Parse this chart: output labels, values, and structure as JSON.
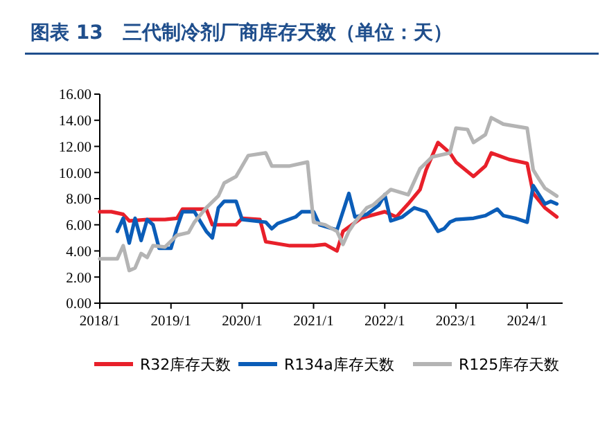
{
  "chart_data": {
    "type": "line",
    "title": "图表 13　三代制冷剂厂商库存天数（单位：天）",
    "xlim": [
      "2018-01",
      "2024-07"
    ],
    "xticks": [
      {
        "value": "2018-01",
        "label": "2018/1"
      },
      {
        "value": "2019-01",
        "label": "2019/1"
      },
      {
        "value": "2020-01",
        "label": "2020/1"
      },
      {
        "value": "2021-01",
        "label": "2021/1"
      },
      {
        "value": "2022-01",
        "label": "2022/1"
      },
      {
        "value": "2023-01",
        "label": "2023/1"
      },
      {
        "value": "2024-01",
        "label": "2024/1"
      }
    ],
    "ylim": [
      0,
      16
    ],
    "yticks": [
      {
        "value": 0,
        "label": "0.00"
      },
      {
        "value": 2,
        "label": "2.00"
      },
      {
        "value": 4,
        "label": "4.00"
      },
      {
        "value": 6,
        "label": "6.00"
      },
      {
        "value": 8,
        "label": "8.00"
      },
      {
        "value": 10,
        "label": "10.00"
      },
      {
        "value": 12,
        "label": "12.00"
      },
      {
        "value": 14,
        "label": "14.00"
      },
      {
        "value": 16,
        "label": "16.00"
      }
    ],
    "grid": false,
    "legend": "bottom",
    "marker": "none",
    "line_style": "solid",
    "series": [
      {
        "name": "R32库存天数",
        "color": "#e8202a",
        "x": [
          "2018-01",
          "2018-03",
          "2018-05",
          "2018-06",
          "2018-09",
          "2018-12",
          "2019-02",
          "2019-03",
          "2019-07",
          "2019-08",
          "2019-12",
          "2020-01",
          "2020-04",
          "2020-05",
          "2020-09",
          "2021-01",
          "2021-03",
          "2021-05",
          "2021-06",
          "2021-09",
          "2022-01",
          "2022-03",
          "2022-05",
          "2022-07",
          "2022-08",
          "2022-10",
          "2022-12",
          "2023-01",
          "2023-04",
          "2023-06",
          "2023-07",
          "2023-10",
          "2024-01",
          "2024-02",
          "2024-04",
          "2024-06"
        ],
        "values": [
          7.0,
          7.0,
          6.8,
          6.3,
          6.4,
          6.4,
          6.5,
          7.2,
          7.2,
          6.0,
          6.0,
          6.5,
          6.4,
          4.7,
          4.4,
          4.4,
          4.5,
          4.0,
          5.5,
          6.5,
          7.0,
          6.6,
          7.6,
          8.7,
          10.2,
          12.3,
          11.5,
          10.8,
          9.7,
          10.5,
          11.5,
          11.0,
          10.7,
          8.4,
          7.3,
          6.6
        ]
      },
      {
        "name": "R134a库存天数",
        "color": "#0b5db8",
        "x": [
          "2018-04",
          "2018-05",
          "2018-06",
          "2018-07",
          "2018-08",
          "2018-09",
          "2018-10",
          "2018-11",
          "2019-01",
          "2019-02",
          "2019-03",
          "2019-05",
          "2019-07",
          "2019-08",
          "2019-09",
          "2019-10",
          "2019-12",
          "2020-01",
          "2020-05",
          "2020-06",
          "2020-07",
          "2020-10",
          "2020-11",
          "2021-01",
          "2021-02",
          "2021-05",
          "2021-07",
          "2021-08",
          "2021-10",
          "2021-12",
          "2022-01",
          "2022-02",
          "2022-04",
          "2022-06",
          "2022-08",
          "2022-10",
          "2022-11",
          "2022-12",
          "2023-01",
          "2023-04",
          "2023-06",
          "2023-08",
          "2023-09",
          "2023-11",
          "2024-01",
          "2024-02",
          "2024-04",
          "2024-05",
          "2024-06"
        ],
        "values": [
          5.5,
          6.5,
          4.6,
          6.5,
          4.8,
          6.4,
          6.0,
          4.2,
          4.2,
          5.8,
          7.0,
          7.0,
          5.5,
          5.0,
          7.3,
          7.8,
          7.8,
          6.4,
          6.2,
          5.7,
          6.1,
          6.6,
          7.0,
          7.0,
          6.0,
          5.6,
          8.4,
          6.6,
          6.8,
          7.5,
          8.3,
          6.3,
          6.6,
          7.3,
          7.0,
          5.5,
          5.7,
          6.2,
          6.4,
          6.5,
          6.7,
          7.2,
          6.7,
          6.5,
          6.2,
          9.0,
          7.6,
          7.8,
          7.6
        ]
      },
      {
        "name": "R125库存天数",
        "color": "#b4b4b4",
        "x": [
          "2018-01",
          "2018-04",
          "2018-05",
          "2018-06",
          "2018-07",
          "2018-08",
          "2018-09",
          "2018-10",
          "2018-12",
          "2019-02",
          "2019-04",
          "2019-05",
          "2019-07",
          "2019-09",
          "2019-10",
          "2019-12",
          "2020-02",
          "2020-05",
          "2020-06",
          "2020-09",
          "2020-12",
          "2021-01",
          "2021-03",
          "2021-05",
          "2021-06",
          "2021-07",
          "2021-08",
          "2021-10",
          "2021-11",
          "2022-02",
          "2022-05",
          "2022-07",
          "2022-09",
          "2022-12",
          "2023-01",
          "2023-03",
          "2023-04",
          "2023-06",
          "2023-07",
          "2023-09",
          "2024-01",
          "2024-02",
          "2024-03",
          "2024-04",
          "2024-06"
        ],
        "values": [
          3.4,
          3.4,
          4.4,
          2.5,
          2.7,
          3.8,
          3.5,
          4.4,
          4.3,
          5.2,
          5.4,
          6.2,
          7.3,
          8.2,
          9.2,
          9.7,
          11.3,
          11.5,
          10.5,
          10.5,
          10.8,
          6.2,
          6.0,
          5.5,
          4.5,
          5.5,
          6.2,
          7.3,
          7.5,
          8.7,
          8.3,
          10.3,
          11.2,
          11.5,
          13.4,
          13.3,
          12.3,
          12.9,
          14.2,
          13.7,
          13.4,
          10.2,
          9.5,
          8.8,
          8.2
        ]
      }
    ]
  }
}
